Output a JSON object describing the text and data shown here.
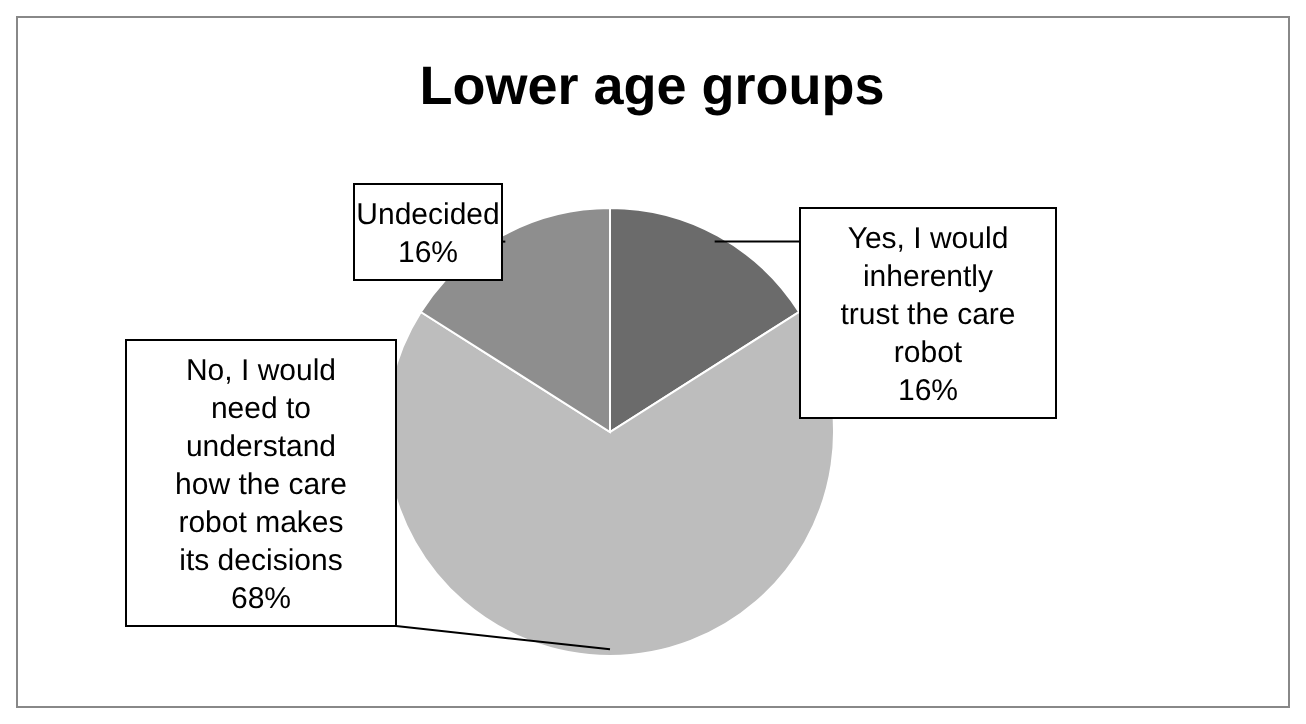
{
  "chart_data": {
    "type": "pie",
    "title": "Lower age groups",
    "categories": [
      "Yes, I would inherently trust the care robot",
      "No, I would need to understand how the care robot makes its decisions",
      "Undecided"
    ],
    "values": [
      16,
      68,
      16
    ],
    "colors": [
      "#6b6b6b",
      "#bdbdbd",
      "#8e8e8e"
    ],
    "value_labels": [
      "16%",
      "68%",
      "16%"
    ],
    "legend": false
  }
}
